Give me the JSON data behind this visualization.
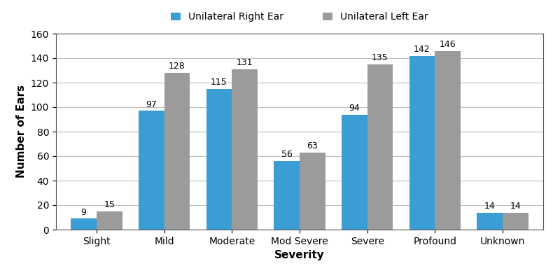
{
  "categories": [
    "Slight",
    "Mild",
    "Moderate",
    "Mod Severe",
    "Severe",
    "Profound",
    "Unknown"
  ],
  "right_ear": [
    9,
    97,
    115,
    56,
    94,
    142,
    14
  ],
  "left_ear": [
    15,
    128,
    131,
    63,
    135,
    146,
    14
  ],
  "right_color": "#3A9DD4",
  "left_color": "#9B9B9B",
  "legend_right": "Unilateral Right Ear",
  "legend_left": "Unilateral Left Ear",
  "xlabel": "Severity",
  "ylabel": "Number of Ears",
  "ylim": [
    0,
    160
  ],
  "yticks": [
    0,
    20,
    40,
    60,
    80,
    100,
    120,
    140,
    160
  ],
  "bar_width": 0.38,
  "label_fontsize": 11,
  "tick_fontsize": 10,
  "annot_fontsize": 9,
  "legend_fontsize": 10,
  "figure_width": 8.0,
  "figure_height": 4.0,
  "dpi": 100,
  "background_color": "#ffffff",
  "grid_color": "#bbbbbb",
  "grid_linewidth": 0.8
}
